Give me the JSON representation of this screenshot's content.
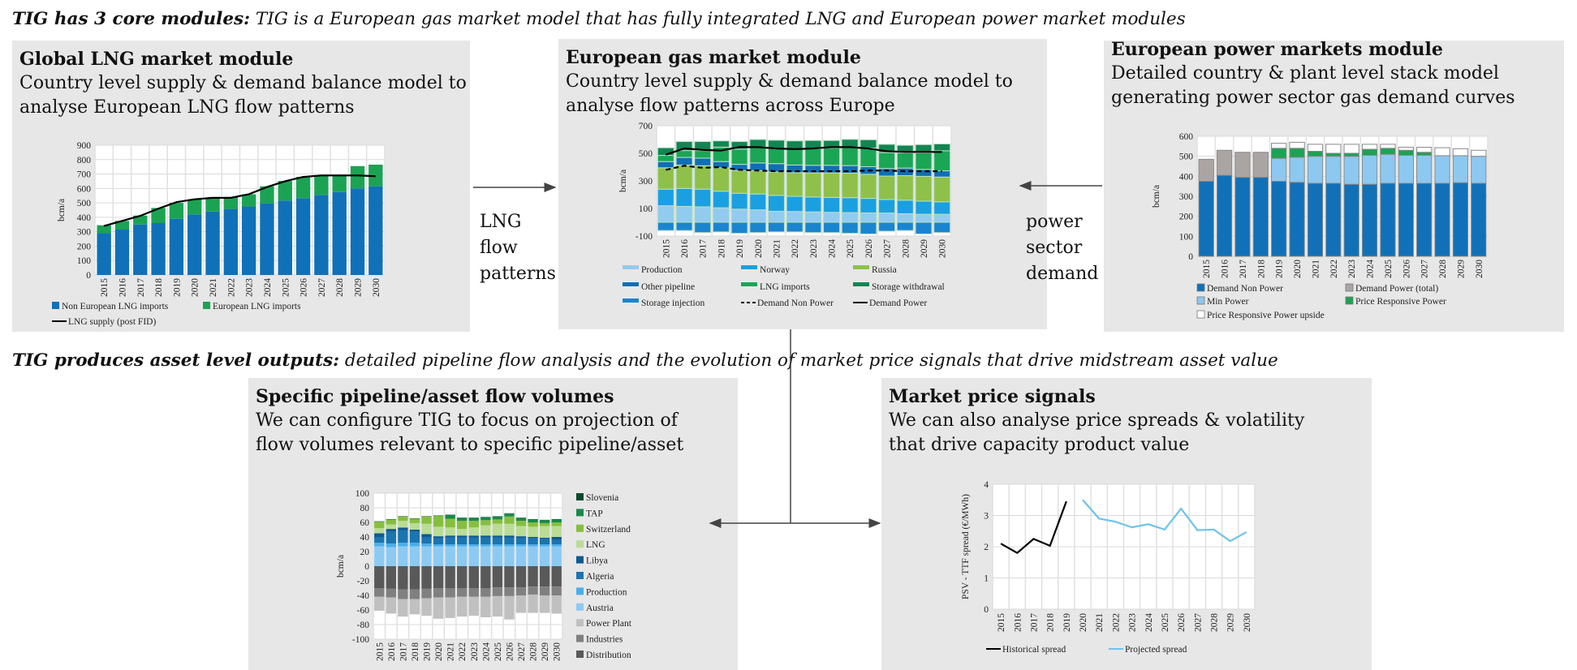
{
  "headings": {
    "top_bold": "TIG has 3 core modules:",
    "top_rest": " TIG is a European gas market model that has fully integrated LNG and European power market modules",
    "bottom_bold": "TIG produces asset level outputs:",
    "bottom_rest": " detailed pipeline flow analysis and the evolution of market price signals that drive midstream asset value"
  },
  "panels": {
    "lng": {
      "title": "Global LNG market module",
      "subtitle": "Country level supply & demand balance model to analyse European LNG flow patterns"
    },
    "gas": {
      "title": "European gas market module",
      "subtitle": "Country level supply & demand balance model to analyse flow patterns across Europe"
    },
    "power": {
      "title": "European power markets module",
      "subtitle": "Detailed country & plant level stack model generating power sector gas demand curves"
    },
    "pipeline": {
      "title": "Specific pipeline/asset flow volumes",
      "subtitle": "We can configure TIG to focus on projection of flow volumes relevant to specific pipeline/asset"
    },
    "price": {
      "title": "Market price signals",
      "subtitle": "We can also analyse price spreads & volatility that drive capacity product value"
    }
  },
  "connectors": {
    "lng_label": "LNG flow patterns",
    "power_label": "power sector demand"
  },
  "chart_data": [
    {
      "type": "bar",
      "title": "Global LNG market",
      "ylabel": "bcm/a",
      "ylim": [
        0,
        900
      ],
      "y_ticks": [
        "0",
        "100",
        "200",
        "300",
        "400",
        "500",
        "600",
        "700",
        "800",
        "900"
      ],
      "y_tick_values": [
        0,
        100,
        200,
        300,
        400,
        500,
        600,
        700,
        800,
        900
      ],
      "grid": "both",
      "categories": [
        "2015",
        "2016",
        "2017",
        "2018",
        "2019",
        "2020",
        "2021",
        "2022",
        "2023",
        "2024",
        "2025",
        "2026",
        "2027",
        "2028",
        "2029",
        "2030"
      ],
      "series": [
        {
          "name": "Non European LNG imports",
          "color": "#1071b8",
          "values": [
            290,
            315,
            350,
            360,
            390,
            420,
            440,
            458,
            475,
            497,
            516,
            533,
            555,
            575,
            600,
            615
          ]
        },
        {
          "name": "European LNG imports",
          "color": "#1ba353",
          "values": [
            55,
            60,
            62,
            105,
            110,
            105,
            95,
            82,
            85,
            118,
            136,
            147,
            135,
            115,
            155,
            150
          ]
        }
      ],
      "lines": [
        {
          "name": "LNG supply (post FID)",
          "color": "#000000",
          "dash": false,
          "values": [
            340,
            375,
            410,
            460,
            505,
            525,
            535,
            535,
            560,
            610,
            650,
            680,
            690,
            690,
            690,
            685
          ]
        }
      ],
      "legend_order": [
        "s0",
        "s1",
        "l0"
      ]
    },
    {
      "type": "bar",
      "title": "European gas market",
      "ylabel": "bcm/a",
      "ylim": [
        -100,
        700
      ],
      "y_ticks": [
        "-100",
        "100",
        "300",
        "500",
        "700"
      ],
      "y_tick_values": [
        -100,
        100,
        300,
        500,
        700
      ],
      "grid": "horizontal",
      "categories": [
        "2015",
        "2016",
        "2017",
        "2018",
        "2019",
        "2020",
        "2021",
        "2022",
        "2023",
        "2024",
        "2025",
        "2026",
        "2027",
        "2028",
        "2029",
        "2030"
      ],
      "series": [
        {
          "name": "Production",
          "color": "#92cbef",
          "values": [
            120,
            115,
            112,
            105,
            95,
            90,
            80,
            78,
            75,
            72,
            70,
            68,
            67,
            62,
            58,
            58
          ]
        },
        {
          "name": "Norway",
          "color": "#1aa0e0",
          "values": [
            120,
            130,
            128,
            120,
            115,
            115,
            115,
            110,
            108,
            108,
            108,
            105,
            98,
            98,
            95,
            90
          ]
        },
        {
          "name": "Russia",
          "color": "#8fc04a",
          "values": [
            155,
            170,
            170,
            170,
            165,
            170,
            170,
            172,
            175,
            178,
            178,
            175,
            170,
            178,
            180,
            180
          ]
        },
        {
          "name": "Other pipeline",
          "color": "#0f6fb5",
          "values": [
            45,
            55,
            55,
            45,
            45,
            55,
            60,
            55,
            55,
            55,
            55,
            55,
            55,
            55,
            50,
            45
          ]
        },
        {
          "name": "LNG imports",
          "color": "#1aa655",
          "values": [
            45,
            50,
            55,
            105,
            110,
            115,
            110,
            115,
            120,
            125,
            130,
            135,
            115,
            110,
            120,
            145
          ]
        },
        {
          "name": "Storage withdrawal",
          "color": "#138552",
          "values": [
            55,
            65,
            65,
            45,
            55,
            55,
            60,
            60,
            60,
            55,
            60,
            60,
            60,
            55,
            60,
            50
          ]
        },
        {
          "name": "Storage injection",
          "color": "#1a85cf",
          "values": [
            -60,
            -60,
            -75,
            -70,
            -80,
            -75,
            -70,
            -70,
            -75,
            -75,
            -80,
            -85,
            -65,
            -60,
            -85,
            -75
          ]
        }
      ],
      "lines": [
        {
          "name": "Demand Non Power",
          "color": "#000000",
          "dash": true,
          "values": [
            380,
            410,
            395,
            400,
            380,
            375,
            370,
            370,
            370,
            370,
            370,
            375,
            375,
            370,
            370,
            370
          ]
        },
        {
          "name": "Demand Power",
          "color": "#000000",
          "dash": false,
          "values": [
            490,
            535,
            525,
            520,
            545,
            545,
            535,
            530,
            535,
            545,
            545,
            535,
            515,
            510,
            510,
            510
          ]
        }
      ],
      "legend_order": [
        "s0",
        "s1",
        "s2",
        "s3",
        "s4",
        "s5",
        "s6",
        "l0",
        "l1"
      ]
    },
    {
      "type": "bar",
      "title": "European power markets",
      "ylabel": "bcm/a",
      "ylim": [
        0,
        600
      ],
      "y_ticks": [
        "0",
        "100",
        "200",
        "300",
        "400",
        "500",
        "600"
      ],
      "y_tick_values": [
        0,
        100,
        200,
        300,
        400,
        500,
        600
      ],
      "grid": "both",
      "categories": [
        "2015",
        "2016",
        "2017",
        "2018",
        "2019",
        "2020",
        "2021",
        "2022",
        "2023",
        "2024",
        "2025",
        "2026",
        "2027",
        "2028",
        "2029",
        "2030"
      ],
      "series": [
        {
          "name": "Demand Non Power",
          "color": "#1071b8",
          "values": [
            375,
            405,
            395,
            395,
            375,
            370,
            365,
            365,
            360,
            360,
            365,
            365,
            365,
            365,
            368,
            365
          ]
        },
        {
          "name": "Demand Power (total)",
          "color": "#aaa5a3",
          "values": [
            110,
            125,
            125,
            125,
            0,
            0,
            0,
            0,
            0,
            0,
            0,
            0,
            0,
            0,
            0,
            0
          ]
        },
        {
          "name": "Min Power",
          "color": "#8cc8f0",
          "values": [
            0,
            0,
            0,
            0,
            115,
            125,
            135,
            135,
            140,
            145,
            145,
            140,
            140,
            138,
            135,
            135
          ]
        },
        {
          "name": "Price Responsive Power",
          "color": "#1ba353",
          "values": [
            0,
            0,
            0,
            0,
            50,
            45,
            25,
            15,
            15,
            30,
            30,
            25,
            15,
            0,
            0,
            0
          ]
        },
        {
          "name": "Price Responsive Power upside",
          "color": "#ffffff",
          "values": [
            0,
            0,
            0,
            0,
            25,
            30,
            35,
            45,
            45,
            25,
            20,
            15,
            25,
            40,
            35,
            30
          ]
        }
      ],
      "lines": [],
      "legend_order": [
        "s0",
        "s1",
        "s2",
        "s3",
        "s4"
      ]
    },
    {
      "type": "bar",
      "title": "Specific pipeline/asset flow volumes",
      "ylabel": "bcm/a",
      "ylim": [
        -100,
        100
      ],
      "y_ticks": [
        "-100",
        "-80",
        "-60",
        "-40",
        "-20",
        "0",
        "20",
        "40",
        "60",
        "80",
        "100"
      ],
      "y_tick_values": [
        -100,
        -80,
        -60,
        -40,
        -20,
        0,
        20,
        40,
        60,
        80,
        100
      ],
      "grid": "horizontal",
      "categories": [
        "2015",
        "2016",
        "2017",
        "2018",
        "2019",
        "2020",
        "2021",
        "2022",
        "2023",
        "2024",
        "2025",
        "2026",
        "2027",
        "2028",
        "2029",
        "2030"
      ],
      "series": [
        {
          "name": "Austria",
          "color": "#8ccaf2",
          "values": [
            27,
            26,
            27,
            27,
            27,
            27,
            27,
            27,
            27,
            27,
            27,
            27,
            27,
            27,
            27,
            27
          ]
        },
        {
          "name": "Production",
          "color": "#4baee9",
          "values": [
            5,
            5,
            5,
            5,
            4,
            3,
            3,
            3,
            3,
            3,
            3,
            3,
            3,
            3,
            3,
            3
          ]
        },
        {
          "name": "Algeria",
          "color": "#1a75b0",
          "values": [
            8,
            16,
            17,
            15,
            9,
            8,
            9,
            9,
            9,
            9,
            9,
            9,
            8,
            8,
            7,
            6
          ]
        },
        {
          "name": "Libya",
          "color": "#0e5a8f",
          "values": [
            5,
            4,
            4,
            3,
            4,
            3,
            3,
            3,
            3,
            3,
            3,
            3,
            3,
            2,
            2,
            4
          ]
        },
        {
          "name": "LNG",
          "color": "#b9dc96",
          "values": [
            7,
            6,
            9,
            9,
            14,
            13,
            11,
            9,
            11,
            14,
            16,
            16,
            14,
            14,
            16,
            15
          ]
        },
        {
          "name": "Switzerland",
          "color": "#86bf3f",
          "values": [
            9,
            7,
            6,
            6,
            10,
            15,
            12,
            11,
            9,
            7,
            6,
            10,
            7,
            6,
            4,
            5
          ]
        },
        {
          "name": "TAP",
          "color": "#178a4a",
          "values": [
            0,
            0,
            0,
            0,
            0,
            0,
            5,
            4,
            4,
            4,
            4,
            4,
            4,
            4,
            4,
            4
          ]
        },
        {
          "name": "Slovenia",
          "color": "#0b4a2c",
          "values": [
            0.5,
            0.5,
            0.5,
            0.5,
            0.5,
            0.5,
            0.5,
            0.5,
            0.5,
            0.5,
            0.5,
            0.5,
            0.5,
            0.5,
            0.5,
            0.5
          ]
        },
        {
          "name": "Distribution",
          "color": "#595959",
          "values": [
            -30,
            -31,
            -32,
            -32,
            -31,
            -30,
            -30,
            -30,
            -30,
            -30,
            -29,
            -29,
            -29,
            -28,
            -28,
            -28
          ]
        },
        {
          "name": "Industries",
          "color": "#808080",
          "values": [
            -12,
            -12,
            -13,
            -13,
            -13,
            -13,
            -13,
            -12,
            -12,
            -12,
            -12,
            -12,
            -11,
            -11,
            -12,
            -12
          ]
        },
        {
          "name": "Power Plant",
          "color": "#c0c0c0",
          "values": [
            -19,
            -22,
            -24,
            -21,
            -24,
            -29,
            -28,
            -27,
            -26,
            -28,
            -28,
            -32,
            -24,
            -25,
            -24,
            -25
          ]
        }
      ],
      "lines": [],
      "legend_order": [
        "s7",
        "s6",
        "s5",
        "s4",
        "s3",
        "s2",
        "s1",
        "s0",
        "s10",
        "s9",
        "s8"
      ]
    },
    {
      "type": "line",
      "title": "Market price signals",
      "ylabel": "PSV - TTF spread (€/MWh)",
      "ylim": [
        0,
        4
      ],
      "y_ticks": [
        "0",
        "1",
        "2",
        "3",
        "4"
      ],
      "y_tick_values": [
        0,
        1,
        2,
        3,
        4
      ],
      "grid": "both",
      "categories": [
        "2015",
        "2016",
        "2017",
        "2018",
        "2019",
        "2020",
        "2021",
        "2022",
        "2023",
        "2024",
        "2025",
        "2026",
        "2027",
        "2028",
        "2029",
        "2030"
      ],
      "series": [],
      "lines": [
        {
          "name": "Historical spread",
          "color": "#000000",
          "dash": false,
          "values": [
            2.1,
            1.8,
            2.25,
            2.03,
            3.45,
            null,
            null,
            null,
            null,
            null,
            null,
            null,
            null,
            null,
            null,
            null
          ]
        },
        {
          "name": "Projected spread",
          "color": "#6ec3ec",
          "dash": false,
          "values": [
            null,
            null,
            null,
            null,
            null,
            3.5,
            2.9,
            2.8,
            2.62,
            2.72,
            2.55,
            3.22,
            2.53,
            2.55,
            2.18,
            2.47
          ]
        }
      ],
      "legend_order": [
        "l0",
        "l1"
      ]
    }
  ]
}
